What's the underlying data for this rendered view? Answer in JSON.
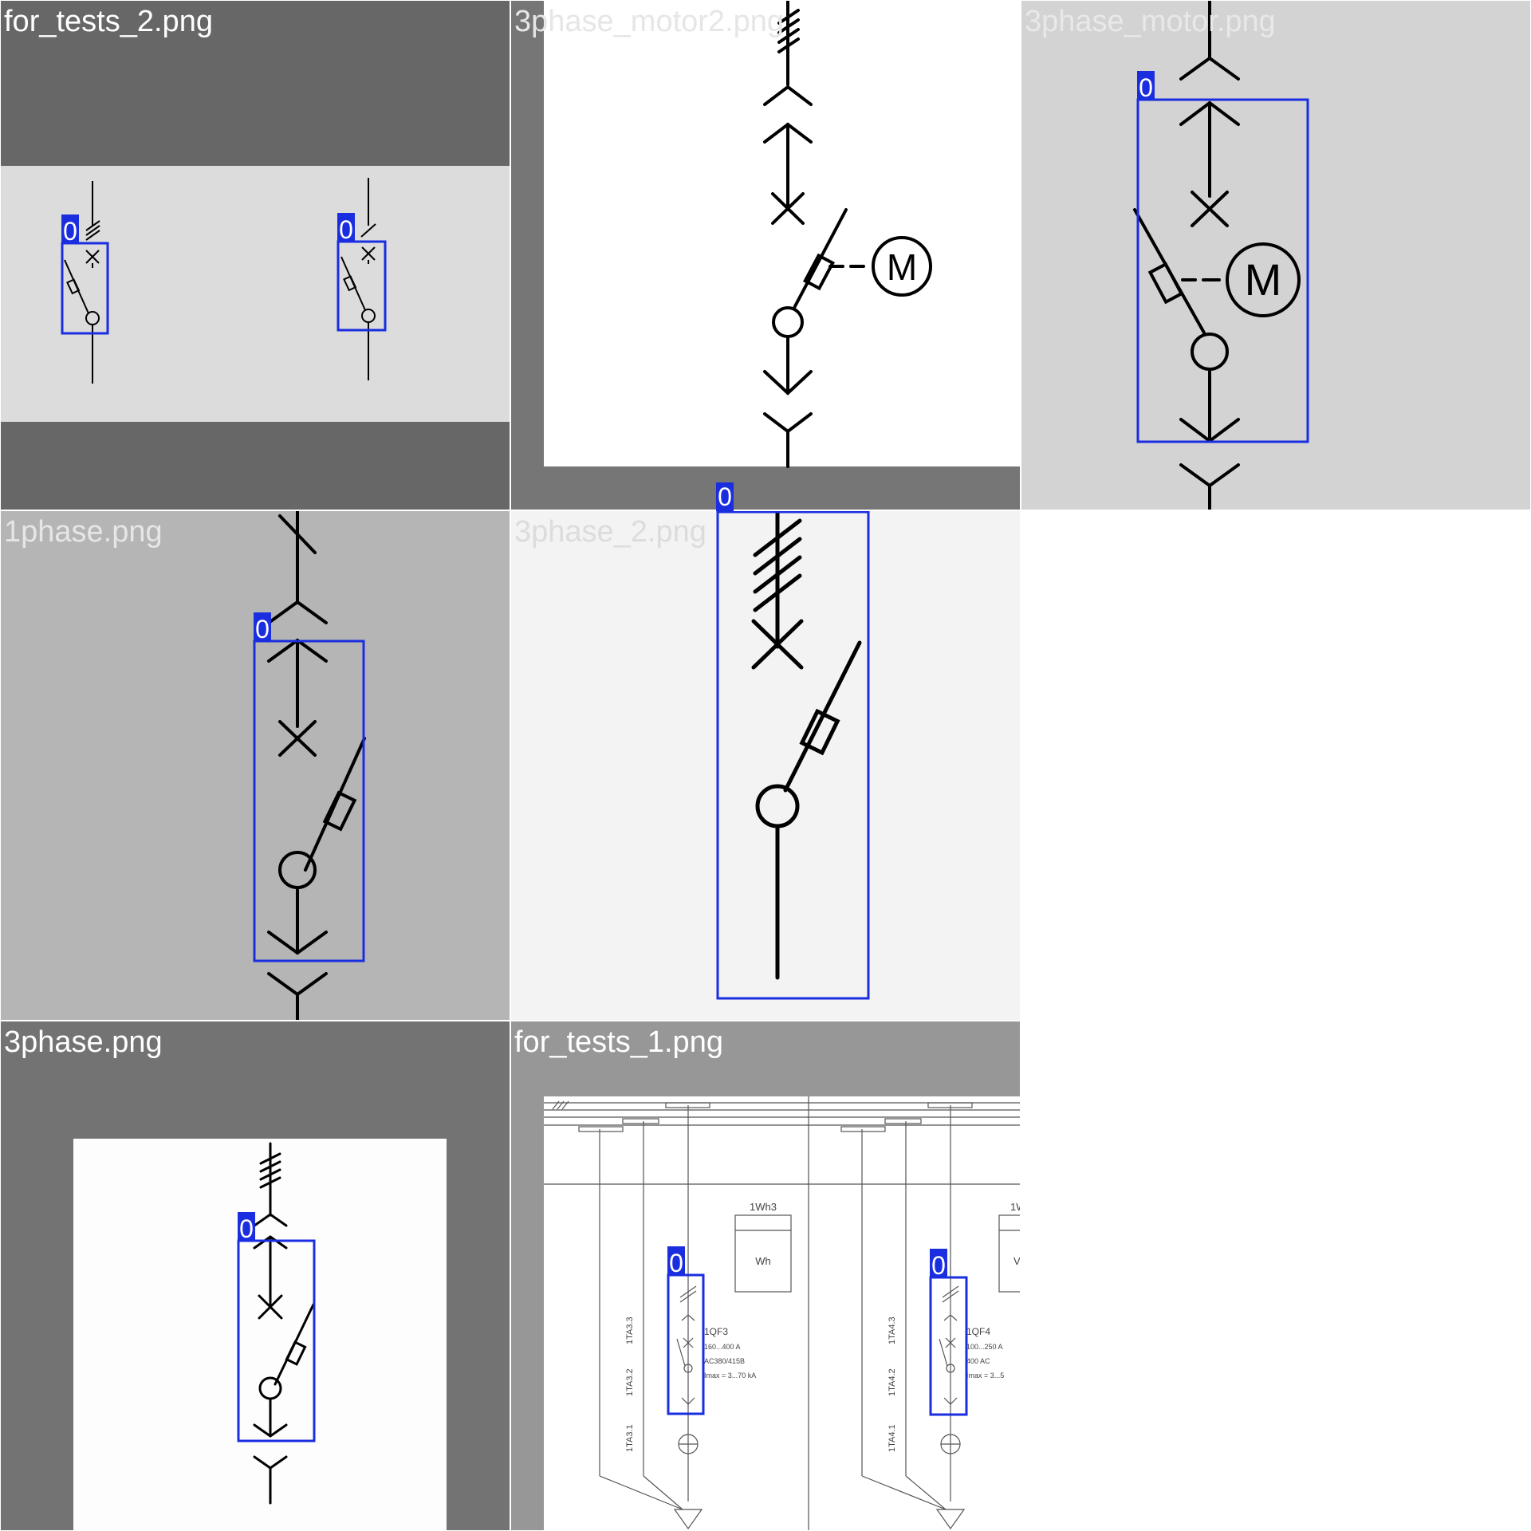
{
  "colors": {
    "box": "#1a2ee0",
    "label_bg": "#1a2ee0",
    "label_text": "#ffffff",
    "symbol": "#000000"
  },
  "tiles": [
    {
      "filename": "for_tests_2.png",
      "title_color": "#ffffff",
      "detections": [
        {
          "label": "0"
        },
        {
          "label": "0"
        }
      ]
    },
    {
      "filename": "3phase_motor2.png",
      "title_color": "#e6e6e6",
      "motor_letter": "M",
      "detections": []
    },
    {
      "filename": "3phase_motor.png",
      "title_color": "#e8e8e8",
      "motor_letter": "M",
      "detections": [
        {
          "label": "0"
        }
      ]
    },
    {
      "filename": "1phase.png",
      "title_color": "#e6e6e6",
      "detections": [
        {
          "label": "0"
        }
      ]
    },
    {
      "filename": "3phase_2.png",
      "title_color": "#dcdcdc",
      "detections": [
        {
          "label": "0"
        }
      ]
    },
    {
      "filename": "3phase.png",
      "title_color": "#ffffff",
      "detections": [
        {
          "label": "0"
        }
      ]
    },
    {
      "filename": "for_tests_1.png",
      "title_color": "#ffffff",
      "detections": [
        {
          "label": "0"
        },
        {
          "label": "0"
        }
      ],
      "schematic": {
        "meter_left": "1Wh3",
        "meter_right": "1W",
        "meter_unit": "Wh",
        "meter_unit_right": "V",
        "breaker_left": [
          "1QF3",
          "160...400 A",
          "AC380/415B",
          "Imax = 3...70 kA"
        ],
        "breaker_right": [
          "1QF4",
          "100...250 A",
          "400 AC",
          "Imax = 3...5"
        ],
        "ct_left": [
          "1TA3.1",
          "1TA3.2",
          "1TA3.3"
        ],
        "ct_right": [
          "1TA4.1",
          "1TA4.2",
          "1TA4.3"
        ]
      }
    }
  ]
}
